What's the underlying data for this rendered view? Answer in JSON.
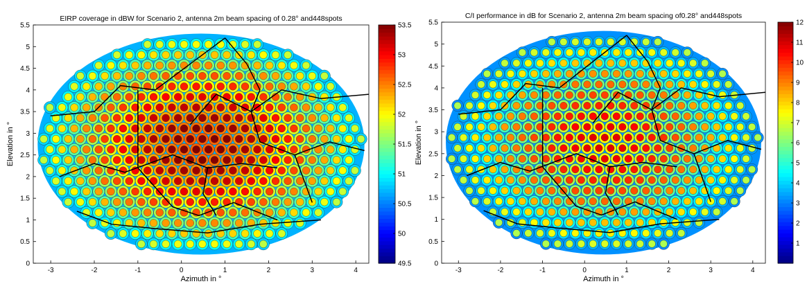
{
  "chart_data": [
    {
      "type": "heatmap",
      "title": "EIRP coverage in dBW for Scenario 2, antenna 2m beam spacing of 0.28° and448spots",
      "xlabel": "Azimuth in °",
      "ylabel": "Elevation in °",
      "xlim": [
        -3.4,
        4.3
      ],
      "ylim": [
        0,
        5.5
      ],
      "xticks": [
        "-3",
        "-2",
        "-1",
        "0",
        "1",
        "2",
        "3",
        "4"
      ],
      "xtick_values": [
        -3,
        -2,
        -1,
        0,
        1,
        2,
        3,
        4
      ],
      "yticks": [
        "0",
        "0.5",
        "1",
        "1.5",
        "2",
        "2.5",
        "3",
        "3.5",
        "4",
        "4.5",
        "5",
        "5.5"
      ],
      "ytick_values": [
        0,
        0.5,
        1,
        1.5,
        2,
        2.5,
        3,
        3.5,
        4,
        4.5,
        5,
        5.5
      ],
      "colorbar": {
        "min": 49.5,
        "max": 53.5,
        "ticks": [
          "49.5",
          "50",
          "50.5",
          "51",
          "51.5",
          "52",
          "52.5",
          "53",
          "53.5"
        ],
        "tick_values": [
          49.5,
          50,
          50.5,
          51,
          51.5,
          52,
          52.5,
          53,
          53.5
        ],
        "colormap": "jet"
      },
      "coverage": {
        "center": [
          0.45,
          2.75
        ],
        "semi_axes": [
          3.75,
          2.55
        ],
        "center_value": 53.2,
        "edge_value": 51.3,
        "outside_value": 50.6,
        "beam_spacing": 0.28,
        "beam_contrast": 1.1
      }
    },
    {
      "type": "heatmap",
      "title": "C/I performance in dB for Scenario 2, antenna 2m beam spacing of0.28° and448spots",
      "xlabel": "Azimuth in °",
      "ylabel": "Elevation in °",
      "xlim": [
        -3.4,
        4.3
      ],
      "ylim": [
        0,
        5.5
      ],
      "xticks": [
        "-3",
        "-2",
        "-1",
        "0",
        "1",
        "2",
        "3",
        "4"
      ],
      "xtick_values": [
        -3,
        -2,
        -1,
        0,
        1,
        2,
        3,
        4
      ],
      "yticks": [
        "0",
        "0.5",
        "1",
        "1.5",
        "2",
        "2.5",
        "3",
        "3.5",
        "4",
        "4.5",
        "5",
        "5.5"
      ],
      "ytick_values": [
        0,
        0.5,
        1,
        1.5,
        2,
        2.5,
        3,
        3.5,
        4,
        4.5,
        5,
        5.5
      ],
      "colorbar": {
        "min": 0,
        "max": 12,
        "ticks": [
          "1",
          "2",
          "3",
          "4",
          "5",
          "6",
          "7",
          "8",
          "9",
          "10",
          "11",
          "12"
        ],
        "tick_values": [
          1,
          2,
          3,
          4,
          5,
          6,
          7,
          8,
          9,
          10,
          11,
          12
        ],
        "colormap": "jet"
      },
      "coverage": {
        "center": [
          0.45,
          2.75
        ],
        "semi_axes": [
          3.75,
          2.55
        ],
        "center_value": 9.5,
        "edge_value": 5.0,
        "outside_value": 1.8,
        "beam_spacing": 0.28,
        "beam_contrast": 4.0
      }
    }
  ]
}
